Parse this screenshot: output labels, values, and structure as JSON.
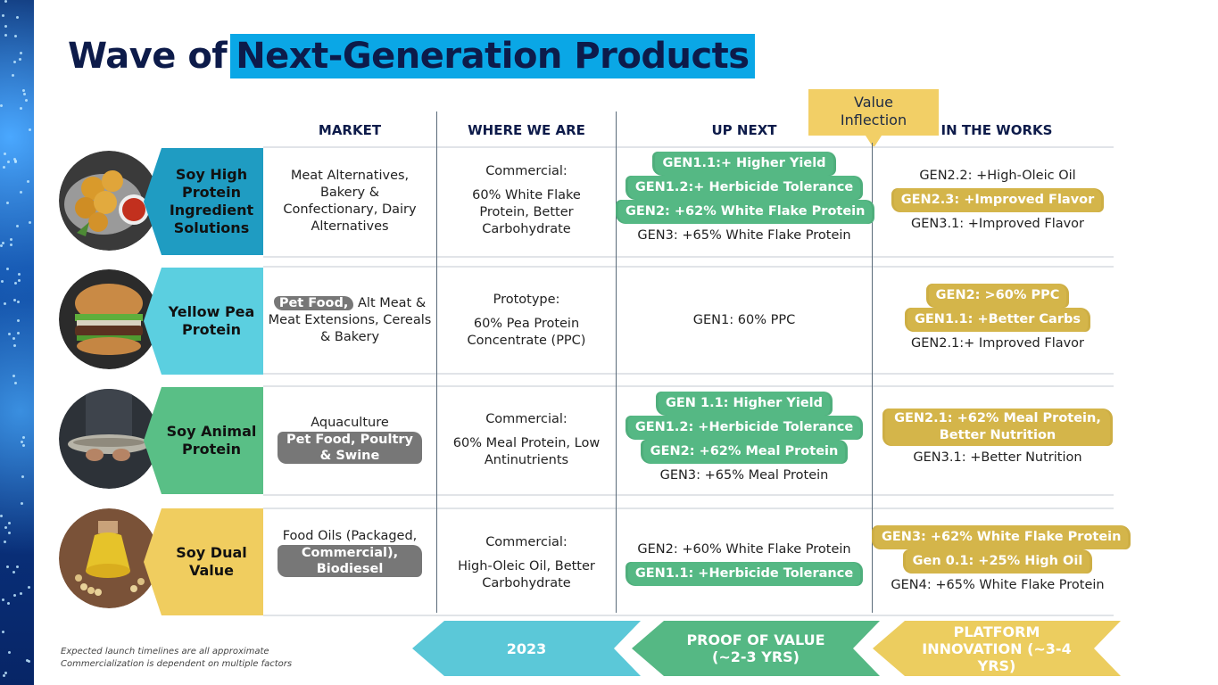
{
  "title": {
    "prefix": "Wave of",
    "highlight": "Next-Generation Products"
  },
  "columns": {
    "market": "MARKET",
    "where": "WHERE WE ARE",
    "next": "UP NEXT",
    "works": "IN THE WORKS"
  },
  "value_inflection": {
    "line1": "Value",
    "line2": "Inflection"
  },
  "rows": [
    {
      "name": "Soy High Protein Ingredient Solutions",
      "name_lines": [
        "Soy High",
        "Protein",
        "Ingredient",
        "Solutions"
      ],
      "market": {
        "plain": "Meat Alternatives, Bakery & Confectionary, Dairy Alternatives"
      },
      "where": {
        "label": "Commercial:",
        "detail": "60% White Flake Protein, Better Carbohydrate"
      },
      "next": [
        {
          "text": "GEN1.1:+ Higher Yield",
          "style": "g"
        },
        {
          "text": "GEN1.2:+ Herbicide Tolerance",
          "style": "g"
        },
        {
          "text": "GEN2: +62% White Flake Protein",
          "style": "g"
        },
        {
          "text": "GEN3: +65% White Flake Protein",
          "style": "plain"
        }
      ],
      "works": [
        {
          "text": "GEN2.2: +High-Oleic Oil",
          "style": "plain"
        },
        {
          "text": "GEN2.3: +Improved Flavor",
          "style": "y"
        },
        {
          "text": "GEN3.1: +Improved Flavor",
          "style": "plain"
        }
      ]
    },
    {
      "name": "Yellow Pea Protein",
      "name_lines": [
        "Yellow Pea",
        "Protein"
      ],
      "market": {
        "highlight": "Pet Food,",
        "rest": " Alt Meat & Meat Extensions, Cereals & Bakery"
      },
      "where": {
        "label": "Prototype:",
        "detail": "60% Pea Protein Concentrate (PPC)"
      },
      "next": [
        {
          "text": "GEN1: 60% PPC",
          "style": "plain"
        }
      ],
      "works": [
        {
          "text": "GEN2: >60% PPC",
          "style": "y"
        },
        {
          "text": "GEN1.1: +Better Carbs",
          "style": "y"
        },
        {
          "text": "GEN2.1:+ Improved Flavor",
          "style": "plain"
        }
      ]
    },
    {
      "name": "Soy Animal Protein",
      "name_lines": [
        "Soy Animal",
        "Protein"
      ],
      "market": {
        "plain_top": "Aquaculture",
        "highlight": "Pet Food,  Poultry & Swine"
      },
      "where": {
        "label": "Commercial:",
        "detail": "60% Meal Protein, Low Antinutrients"
      },
      "next": [
        {
          "text": "GEN 1.1: Higher Yield",
          "style": "g"
        },
        {
          "text": "GEN1.2: +Herbicide Tolerance",
          "style": "g"
        },
        {
          "text": "GEN2: +62% Meal Protein",
          "style": "g"
        },
        {
          "text": "GEN3: +65% Meal Protein",
          "style": "plain"
        }
      ],
      "works": [
        {
          "text": "GEN2.1: +62% Meal Protein, Better Nutrition",
          "style": "y"
        },
        {
          "text": "GEN3.1: +Better Nutrition",
          "style": "plain"
        }
      ]
    },
    {
      "name": "Soy Dual Value",
      "name_lines": [
        "Soy Dual",
        "Value"
      ],
      "market": {
        "plain_top": "Food Oils (Packaged,",
        "highlight": "Commercial), Biodiesel"
      },
      "where": {
        "label": "Commercial:",
        "detail": "High-Oleic Oil, Better Carbohydrate"
      },
      "next": [
        {
          "text": "GEN2: +60% White Flake Protein",
          "style": "plain"
        },
        {
          "text": "GEN1.1: +Herbicide Tolerance",
          "style": "g"
        }
      ],
      "works": [
        {
          "text": "GEN3: +62% White Flake Protein",
          "style": "y"
        },
        {
          "text": "Gen 0.1: +25% High Oil",
          "style": "y"
        },
        {
          "text": "GEN4: +65% White Flake Protein",
          "style": "plain"
        }
      ]
    }
  ],
  "timeline": [
    {
      "text": "2023",
      "color": "#5bc8d8"
    },
    {
      "text": "PROOF OF VALUE (~2-3 YRS)",
      "color": "#55b884"
    },
    {
      "text": "PLATFORM INNOVATION (~3-4 YRS)",
      "color": "#eccd5f"
    }
  ],
  "footnote": {
    "line1": "Expected launch timelines are all approximate",
    "line2": "Commercialization is dependent on multiple factors"
  },
  "colors": {
    "title_highlight": "#0aa7e6",
    "row1": "#1f9cc2",
    "row2": "#5bcfe0",
    "row3": "#59bf86",
    "row4": "#f0cd5f",
    "green": "#55b884",
    "gold": "#d4b54a"
  }
}
